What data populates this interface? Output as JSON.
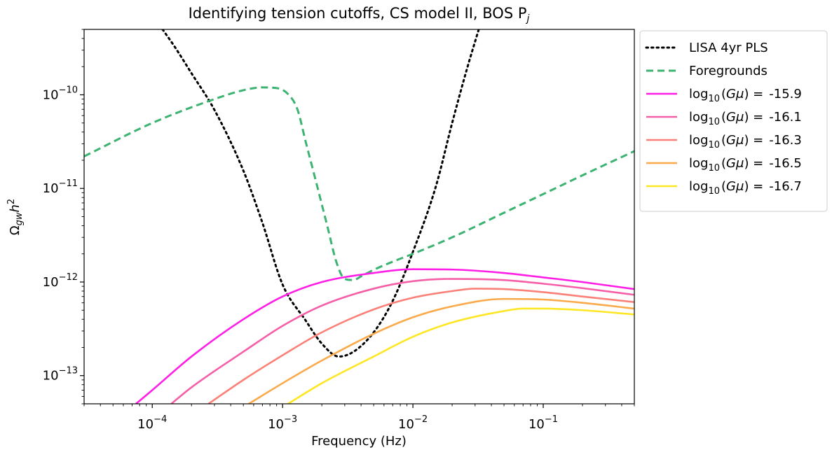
{
  "chart_data": {
    "type": "line",
    "title": "Identifying tension cutoffs, CS model II, BOS P",
    "title_sub": "j",
    "xlabel": "Frequency (Hz)",
    "ylabel": "Ωgwh²",
    "x_scale": "log",
    "y_scale": "log",
    "xlim": [
      3e-05,
      0.5
    ],
    "ylim": [
      5e-14,
      5e-10
    ],
    "grid": false,
    "legend_position": "outside-right",
    "x_ticks": [
      {
        "value": 0.0001,
        "base": "10",
        "exp": "−4"
      },
      {
        "value": 0.001,
        "base": "10",
        "exp": "−3"
      },
      {
        "value": 0.01,
        "base": "10",
        "exp": "−2"
      },
      {
        "value": 0.1,
        "base": "10",
        "exp": "−1"
      }
    ],
    "y_ticks": [
      {
        "value": 1e-13,
        "base": "10",
        "exp": "−13"
      },
      {
        "value": 1e-12,
        "base": "10",
        "exp": "−12"
      },
      {
        "value": 1e-11,
        "base": "10",
        "exp": "−11"
      },
      {
        "value": 1e-10,
        "base": "10",
        "exp": "−10"
      }
    ],
    "series": [
      {
        "name": "LISA 4yr PLS",
        "color": "#000000",
        "style": "dotted",
        "x": [
          0.00012,
          0.00015,
          0.0002,
          0.0003,
          0.0005,
          0.0007,
          0.001,
          0.0015,
          0.002,
          0.0027,
          0.0035,
          0.005,
          0.007,
          0.01,
          0.015,
          0.02,
          0.026,
          0.032
        ],
        "y": [
          5e-10,
          3.2e-10,
          1.7e-10,
          6.9e-11,
          1.55e-11,
          4.3e-12,
          9.4e-13,
          3.9e-13,
          2.2e-13,
          1.6e-13,
          1.8e-13,
          2.9e-13,
          6.3e-13,
          2.1e-12,
          1.05e-11,
          5e-11,
          1.9e-10,
          5e-10
        ]
      },
      {
        "name": "Foregrounds",
        "color": "#3cb371",
        "style": "dashed",
        "x": [
          3e-05,
          0.0001,
          0.0003,
          0.0005,
          0.0007,
          0.0009,
          0.0011,
          0.0013,
          0.0015,
          0.0018,
          0.0022,
          0.0026,
          0.003,
          0.0035,
          0.004,
          0.005,
          0.007,
          0.01,
          0.02,
          0.05,
          0.1,
          0.2,
          0.5
        ],
        "y": [
          2.2e-11,
          5e-11,
          9e-11,
          1.12e-10,
          1.2e-10,
          1.18e-10,
          1.02e-10,
          7e-11,
          3.2e-11,
          1.2e-11,
          4e-12,
          1.6e-12,
          1.08e-12,
          1.05e-12,
          1.15e-12,
          1.35e-12,
          1.65e-12,
          2e-12,
          3e-12,
          5.5e-12,
          8.7e-12,
          1.38e-11,
          2.5e-11
        ]
      },
      {
        "name": "log₁₀(Gμ) = -15.9",
        "label_value": "-15.9",
        "color": "#ff1ee6",
        "style": "solid",
        "x": [
          7.5e-05,
          0.0001,
          0.0002,
          0.0005,
          0.001,
          0.002,
          0.005,
          0.01,
          0.02,
          0.05,
          0.1,
          0.2,
          0.5
        ],
        "y": [
          5e-14,
          7e-14,
          1.6e-13,
          4e-13,
          7e-13,
          1e-12,
          1.25e-12,
          1.37e-12,
          1.36e-12,
          1.25e-12,
          1.12e-12,
          1e-12,
          8.4e-13
        ]
      },
      {
        "name": "log₁₀(Gμ) = -16.1",
        "label_value": "-16.1",
        "color": "#f55fa8",
        "style": "solid",
        "x": [
          0.00014,
          0.0002,
          0.0005,
          0.001,
          0.002,
          0.005,
          0.01,
          0.02,
          0.05,
          0.1,
          0.2,
          0.5
        ],
        "y": [
          5e-14,
          7.5e-14,
          1.8e-13,
          3.4e-13,
          5.6e-13,
          8.5e-13,
          1.02e-12,
          1.08e-12,
          1.05e-12,
          9.6e-13,
          8.6e-13,
          7.3e-13
        ]
      },
      {
        "name": "log₁₀(Gμ) = -16.3",
        "label_value": "-16.3",
        "color": "#fa8078",
        "style": "solid",
        "x": [
          0.00027,
          0.0005,
          0.001,
          0.002,
          0.005,
          0.01,
          0.02,
          0.03,
          0.05,
          0.1,
          0.2,
          0.5
        ],
        "y": [
          5e-14,
          9e-14,
          1.65e-13,
          2.9e-13,
          5.1e-13,
          6.8e-13,
          8e-13,
          8.5e-13,
          8.4e-13,
          7.8e-13,
          7e-13,
          6.1e-13
        ]
      },
      {
        "name": "log₁₀(Gμ) = -16.5",
        "label_value": "-16.5",
        "color": "#fbaa4b",
        "style": "solid",
        "x": [
          0.00055,
          0.001,
          0.002,
          0.005,
          0.01,
          0.02,
          0.05,
          0.1,
          0.2,
          0.5
        ],
        "y": [
          5e-14,
          8.3e-14,
          1.45e-13,
          2.8e-13,
          4.2e-13,
          5.5e-13,
          6.6e-13,
          6.5e-13,
          6e-13,
          5.2e-13
        ]
      },
      {
        "name": "log₁₀(Gμ) = -16.7",
        "label_value": "-16.7",
        "color": "#fde724",
        "style": "solid",
        "x": [
          0.0011,
          0.002,
          0.005,
          0.01,
          0.02,
          0.05,
          0.07,
          0.1,
          0.2,
          0.5
        ],
        "y": [
          5e-14,
          8.3e-14,
          1.6e-13,
          2.6e-13,
          3.7e-13,
          4.9e-13,
          5.2e-13,
          5.2e-13,
          5e-13,
          4.5e-13
        ]
      }
    ],
    "legend_entries": [
      {
        "kind": "plain",
        "text": "LISA 4yr PLS"
      },
      {
        "kind": "plain",
        "text": "Foregrounds"
      },
      {
        "kind": "gmu",
        "pre": "log",
        "sub": "10",
        "mid": "(",
        "var1": "G",
        "var2": "μ",
        "post": ") =",
        "value": "-15.9"
      },
      {
        "kind": "gmu",
        "pre": "log",
        "sub": "10",
        "mid": "(",
        "var1": "G",
        "var2": "μ",
        "post": ") =",
        "value": "-16.1"
      },
      {
        "kind": "gmu",
        "pre": "log",
        "sub": "10",
        "mid": "(",
        "var1": "G",
        "var2": "μ",
        "post": ") =",
        "value": "-16.3"
      },
      {
        "kind": "gmu",
        "pre": "log",
        "sub": "10",
        "mid": "(",
        "var1": "G",
        "var2": "μ",
        "post": ") =",
        "value": "-16.5"
      },
      {
        "kind": "gmu",
        "pre": "log",
        "sub": "10",
        "mid": "(",
        "var1": "G",
        "var2": "μ",
        "post": ") =",
        "value": "-16.7"
      }
    ]
  }
}
